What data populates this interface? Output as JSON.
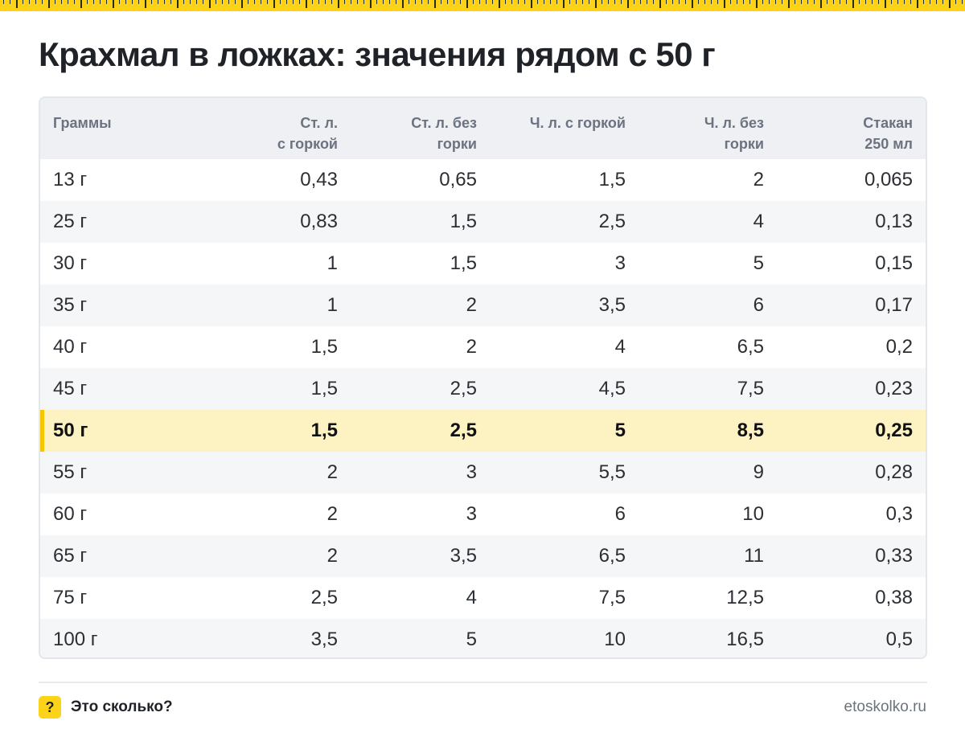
{
  "title": "Крахмал в ложках: значения рядом с 50 г",
  "table": {
    "headers": [
      "Граммы",
      "Ст. л.\nс горкой",
      "Ст. л. без\nгорки",
      "Ч. л. с горкой",
      "Ч. л. без\nгорки",
      "Стакан\n250 мл"
    ],
    "rows": [
      [
        "13 г",
        "0,43",
        "0,65",
        "1,5",
        "2",
        "0,065"
      ],
      [
        "25 г",
        "0,83",
        "1,5",
        "2,5",
        "4",
        "0,13"
      ],
      [
        "30 г",
        "1",
        "1,5",
        "3",
        "5",
        "0,15"
      ],
      [
        "35 г",
        "1",
        "2",
        "3,5",
        "6",
        "0,17"
      ],
      [
        "40 г",
        "1,5",
        "2",
        "4",
        "6,5",
        "0,2"
      ],
      [
        "45 г",
        "1,5",
        "2,5",
        "4,5",
        "7,5",
        "0,23"
      ],
      [
        "50 г",
        "1,5",
        "2,5",
        "5",
        "8,5",
        "0,25"
      ],
      [
        "55 г",
        "2",
        "3",
        "5,5",
        "9",
        "0,28"
      ],
      [
        "60 г",
        "2",
        "3",
        "6",
        "10",
        "0,3"
      ],
      [
        "65 г",
        "2",
        "3,5",
        "6,5",
        "11",
        "0,33"
      ],
      [
        "75 г",
        "2,5",
        "4",
        "7,5",
        "12,5",
        "0,38"
      ],
      [
        "100 г",
        "3,5",
        "5",
        "10",
        "16,5",
        "0,5"
      ]
    ],
    "highlight_row": "50 г",
    "highlight_color": "#fdf2c2",
    "accent_color": "#f7c600"
  },
  "footer": {
    "badge": "?",
    "brand": "Это сколько?",
    "url": "etoskolko.ru"
  }
}
